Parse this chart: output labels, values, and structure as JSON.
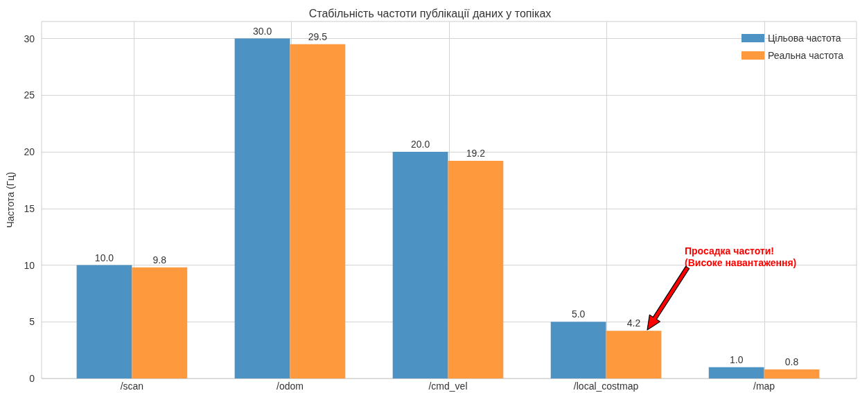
{
  "chart_data": {
    "type": "bar",
    "title": "Стабільність частоти публікації даних у топіках",
    "ylabel": "Частота (Гц)",
    "categories": [
      "/scan",
      "/odom",
      "/cmd_vel",
      "/local_costmap",
      "/map"
    ],
    "series": [
      {
        "name": "Цільова частота",
        "color": "#4c92c3",
        "values": [
          10,
          30,
          20,
          5,
          1
        ],
        "value_labels": [
          "10.0",
          "30.0",
          "20.0",
          "5.0",
          "1.0"
        ]
      },
      {
        "name": "Реальна частота",
        "color": "#ff993e",
        "values": [
          9.8,
          29.5,
          19.2,
          4.2,
          0.8
        ],
        "value_labels": [
          "9.8",
          "29.5",
          "19.2",
          "4.2",
          "0.8"
        ]
      }
    ],
    "ylim": [
      0,
      31.5
    ],
    "yticks": [
      0,
      5,
      10,
      15,
      20,
      25,
      30
    ],
    "grid": true,
    "legend": "top right",
    "annotations": [
      "Просадка частоти!\n(Високе навантаження)"
    ]
  }
}
